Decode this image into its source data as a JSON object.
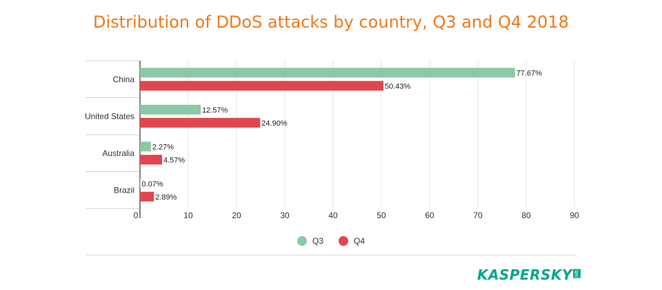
{
  "chart_data": {
    "type": "bar",
    "orientation": "horizontal",
    "title": "Distribution of DDoS attacks by country, Q3 and Q4 2018",
    "categories": [
      "China",
      "United States",
      "Australia",
      "Brazil"
    ],
    "series": [
      {
        "name": "Q3",
        "values": [
          77.67,
          12.57,
          2.27,
          0.07
        ],
        "labels": [
          "77.67%",
          "12.57%",
          "2.27%",
          "0.07%"
        ],
        "color": "#8cc8a4"
      },
      {
        "name": "Q4",
        "values": [
          50.43,
          24.9,
          4.57,
          2.89
        ],
        "labels": [
          "50.43%",
          "24.90%",
          "4.57%",
          "2.89%"
        ],
        "color": "#e0464e"
      }
    ],
    "xlim": [
      0,
      90
    ],
    "xticks": [
      0,
      10,
      20,
      30,
      40,
      50,
      60,
      70,
      80,
      90
    ],
    "grid": true,
    "legend_position": "bottom-center"
  },
  "branding": {
    "logo_text": "KASPERSKY",
    "logo_sub": "lab",
    "logo_color": "#00a88e",
    "title_color": "#ee7a1c"
  }
}
